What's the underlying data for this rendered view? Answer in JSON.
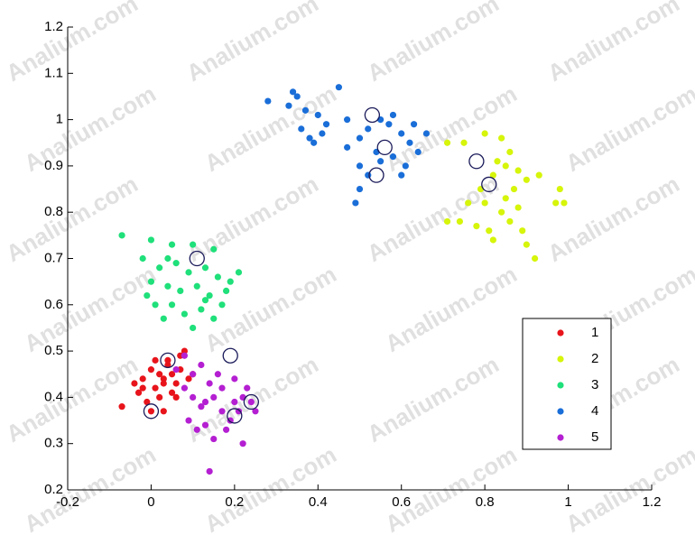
{
  "watermark": "Analium.com",
  "chart_data": {
    "type": "scatter",
    "xlim": [
      -0.2,
      1.2
    ],
    "xticks": [
      -0.2,
      0,
      0.2,
      0.4,
      0.6,
      0.8,
      1,
      1.2
    ],
    "ylim": [
      0.2,
      1.2
    ],
    "yticks": [
      0.2,
      0.3,
      0.4,
      0.5,
      0.6,
      0.7,
      0.8,
      0.9,
      1,
      1.1,
      1.2
    ],
    "legend": "southeast",
    "series": [
      {
        "name": "1",
        "color": "#e8141b",
        "x": [
          -0.07,
          -0.04,
          -0.03,
          -0.02,
          0,
          0.01,
          0.02,
          0.03,
          0.04,
          0.05,
          0.06,
          0.07,
          0.08,
          0.03,
          0.01,
          -0.01,
          0.05,
          0.02,
          0.09,
          0.04,
          0,
          0.06,
          -0.02,
          0.03,
          0.07,
          0.1
        ],
        "values": [
          0.38,
          0.43,
          0.41,
          0.44,
          0.46,
          0.42,
          0.4,
          0.44,
          0.47,
          0.45,
          0.43,
          0.49,
          0.5,
          0.37,
          0.48,
          0.39,
          0.41,
          0.45,
          0.44,
          0.48,
          0.37,
          0.4,
          0.42,
          0.43,
          0.46,
          0.45
        ]
      },
      {
        "name": "2",
        "color": "#d6f50a",
        "x": [
          0.71,
          0.75,
          0.8,
          0.84,
          0.86,
          0.83,
          0.85,
          0.88,
          0.9,
          0.93,
          0.82,
          0.79,
          0.87,
          0.76,
          0.8,
          0.84,
          0.86,
          0.89,
          0.9,
          0.92,
          0.71,
          0.74,
          0.78,
          0.82,
          0.81,
          0.98,
          0.99,
          0.97,
          0.88,
          0.85
        ],
        "values": [
          0.95,
          0.95,
          0.97,
          0.96,
          0.93,
          0.91,
          0.9,
          0.89,
          0.87,
          0.88,
          0.88,
          0.85,
          0.85,
          0.82,
          0.82,
          0.8,
          0.78,
          0.76,
          0.73,
          0.7,
          0.78,
          0.78,
          0.77,
          0.74,
          0.76,
          0.85,
          0.82,
          0.82,
          0.81,
          0.83
        ]
      },
      {
        "name": "3",
        "color": "#1fe07a",
        "x": [
          -0.07,
          0,
          0.05,
          0.1,
          0.15,
          -0.02,
          0.02,
          0.06,
          0.09,
          0.13,
          0.16,
          0.21,
          0,
          0.04,
          0.07,
          0.11,
          0.14,
          0.18,
          0.01,
          -0.01,
          0.05,
          0.08,
          0.12,
          0.15,
          0.17,
          0.03,
          0.1,
          0.13,
          0.19,
          0.04
        ],
        "values": [
          0.75,
          0.74,
          0.73,
          0.73,
          0.72,
          0.7,
          0.68,
          0.69,
          0.67,
          0.68,
          0.66,
          0.67,
          0.65,
          0.64,
          0.63,
          0.64,
          0.62,
          0.63,
          0.6,
          0.62,
          0.6,
          0.58,
          0.59,
          0.57,
          0.6,
          0.57,
          0.55,
          0.61,
          0.65,
          0.7
        ]
      },
      {
        "name": "4",
        "color": "#1a6ed8",
        "x": [
          0.28,
          0.34,
          0.35,
          0.33,
          0.37,
          0.45,
          0.4,
          0.42,
          0.36,
          0.38,
          0.39,
          0.41,
          0.47,
          0.5,
          0.52,
          0.55,
          0.57,
          0.58,
          0.6,
          0.62,
          0.63,
          0.66,
          0.54,
          0.5,
          0.52,
          0.55,
          0.58,
          0.61,
          0.64,
          0.49,
          0.5,
          0.6,
          0.47
        ],
        "values": [
          1.04,
          1.06,
          1.05,
          1.03,
          1.02,
          1.07,
          1.01,
          0.99,
          0.98,
          0.96,
          0.95,
          0.97,
          1,
          0.96,
          0.98,
          1,
          0.99,
          1.01,
          0.97,
          0.95,
          0.99,
          0.97,
          0.93,
          0.9,
          0.88,
          0.91,
          0.92,
          0.9,
          0.93,
          0.82,
          0.85,
          0.88,
          0.94
        ]
      },
      {
        "name": "5",
        "color": "#b41fd2",
        "x": [
          0.08,
          0.1,
          0.12,
          0.14,
          0.1,
          0.12,
          0.15,
          0.17,
          0.13,
          0.11,
          0.15,
          0.19,
          0.2,
          0.22,
          0.23,
          0.21,
          0.25,
          0.22,
          0.2,
          0.16,
          0.14,
          0.08,
          0.09,
          0.17,
          0.24,
          0.13,
          0.18,
          0.06
        ],
        "values": [
          0.49,
          0.45,
          0.47,
          0.43,
          0.4,
          0.38,
          0.4,
          0.37,
          0.34,
          0.33,
          0.31,
          0.35,
          0.39,
          0.4,
          0.42,
          0.37,
          0.37,
          0.3,
          0.44,
          0.45,
          0.24,
          0.42,
          0.35,
          0.42,
          0.39,
          0.39,
          0.33,
          0.46
        ]
      }
    ],
    "circled": {
      "color": "#1a1a5a",
      "x": [
        0,
        0.04,
        0.19,
        0.2,
        0.24,
        0.11,
        0.53,
        0.56,
        0.54,
        0.78,
        0.81
      ],
      "y": [
        0.37,
        0.48,
        0.49,
        0.36,
        0.39,
        0.7,
        1.01,
        0.94,
        0.88,
        0.91,
        0.86
      ]
    }
  }
}
